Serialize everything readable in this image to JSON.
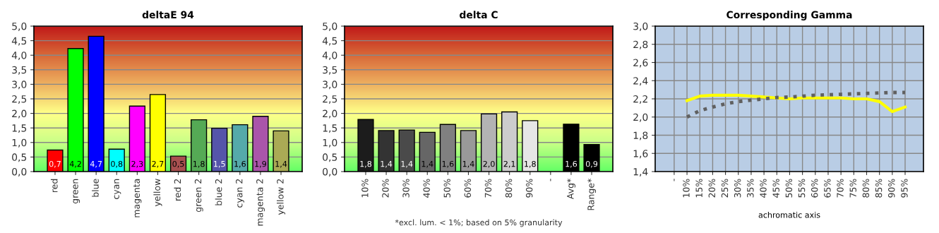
{
  "chart_data": [
    {
      "type": "bar",
      "title": "deltaE 94",
      "categories": [
        "red",
        "green",
        "blue",
        "cyan",
        "magenta",
        "yellow",
        "red 2",
        "green 2",
        "blue 2",
        "cyan 2",
        "magenta 2",
        "yellow 2"
      ],
      "values": [
        0.74,
        4.23,
        4.65,
        0.77,
        2.25,
        2.65,
        0.53,
        1.78,
        1.49,
        1.61,
        1.9,
        1.4
      ],
      "colors": [
        "#ff0000",
        "#00ff00",
        "#0000ff",
        "#00ffff",
        "#ff00ff",
        "#ffff00",
        "#a85050",
        "#55aa55",
        "#5555aa",
        "#55aaaa",
        "#aa55aa",
        "#aaaa55"
      ],
      "value_labels": [
        "0,7",
        "4,2",
        "4,7",
        "0,8",
        "2,3",
        "2,7",
        "0,5",
        "1,8",
        "1,5",
        "1,6",
        "1,9",
        "1,4"
      ],
      "ylim": [
        0,
        5
      ],
      "yticks": [
        {
          "value": 0,
          "label": "0,0"
        },
        {
          "value": 0.5,
          "label": "0,5"
        },
        {
          "value": 1,
          "label": "1,0"
        },
        {
          "value": 1.5,
          "label": "1,5"
        },
        {
          "value": 2,
          "label": "2,0"
        },
        {
          "value": 2.5,
          "label": "2,5"
        },
        {
          "value": 3,
          "label": "3,0"
        },
        {
          "value": 3.5,
          "label": "3,5"
        },
        {
          "value": 4,
          "label": "4,0"
        },
        {
          "value": 4.5,
          "label": "4,5"
        },
        {
          "value": 5,
          "label": "5,0"
        }
      ],
      "grid": "y"
    },
    {
      "type": "bar",
      "title": "delta C",
      "categories": [
        "10%",
        "20%",
        "30%",
        "40%",
        "50%",
        "60%",
        "70%",
        "80%",
        "90%",
        "-",
        "Avg*",
        "Range*"
      ],
      "values": [
        1.79,
        1.41,
        1.43,
        1.35,
        1.62,
        1.41,
        1.98,
        2.05,
        1.75,
        null,
        1.63,
        0.93
      ],
      "colors": [
        "#1c1c1c",
        "#333333",
        "#4a4a4a",
        "#666666",
        "#808080",
        "#999999",
        "#b3b3b3",
        "#cccccc",
        "#e6e6e6",
        "#000000",
        "#000000",
        "#000000"
      ],
      "value_labels": [
        "1,8",
        "1,4",
        "1,4",
        "1,4",
        "1,6",
        "1,4",
        "2,0",
        "2,1",
        "1,8",
        null,
        "1,6",
        "0,9"
      ],
      "ylim": [
        0,
        5
      ],
      "yticks": [
        {
          "value": 0,
          "label": "0,0"
        },
        {
          "value": 0.5,
          "label": "0,5"
        },
        {
          "value": 1,
          "label": "1,0"
        },
        {
          "value": 1.5,
          "label": "1,5"
        },
        {
          "value": 2,
          "label": "2,0"
        },
        {
          "value": 2.5,
          "label": "2,5"
        },
        {
          "value": 3,
          "label": "3,0"
        },
        {
          "value": 3.5,
          "label": "3,5"
        },
        {
          "value": 4,
          "label": "4,0"
        },
        {
          "value": 4.5,
          "label": "4,5"
        },
        {
          "value": 5,
          "label": "5,0"
        }
      ],
      "grid": "y",
      "annotations": [
        "*excl. lum. < 1%; based on 5% granularity"
      ]
    },
    {
      "type": "line",
      "title": "Corresponding Gamma",
      "xlabel": "achromatic axis",
      "categories": [
        "-",
        "10%",
        "15%",
        "20%",
        "25%",
        "30%",
        "35%",
        "40%",
        "45%",
        "50%",
        "55%",
        "60%",
        "65%",
        "70%",
        "75%",
        "80%",
        "85%",
        "90%",
        "95%"
      ],
      "series": [
        {
          "color": "#ffff00",
          "line_style": "solid",
          "values": [
            null,
            2.18,
            2.23,
            2.24,
            2.24,
            2.24,
            2.23,
            2.22,
            2.21,
            2.2,
            2.21,
            2.21,
            2.21,
            2.21,
            2.2,
            2.2,
            2.17,
            2.06,
            2.11
          ]
        },
        {
          "color": "#606060",
          "line_style": "dotted",
          "values": [
            null,
            2.0,
            2.07,
            2.11,
            2.145,
            2.17,
            2.185,
            2.2,
            2.215,
            2.22,
            2.23,
            2.24,
            2.245,
            2.25,
            2.255,
            2.26,
            2.265,
            2.27,
            2.27
          ]
        }
      ],
      "ylim": [
        1.4,
        3.0
      ],
      "yticks": [
        {
          "value": 1.4,
          "label": "1,4"
        },
        {
          "value": 1.6,
          "label": "1,6"
        },
        {
          "value": 1.8,
          "label": "1,8"
        },
        {
          "value": 2.0,
          "label": "2,0"
        },
        {
          "value": 2.2,
          "label": "2,2"
        },
        {
          "value": 2.4,
          "label": "2,4"
        },
        {
          "value": 2.6,
          "label": "2,6"
        },
        {
          "value": 2.8,
          "label": "2,8"
        },
        {
          "value": 3.0,
          "label": "3,0"
        }
      ],
      "grid": true
    }
  ]
}
